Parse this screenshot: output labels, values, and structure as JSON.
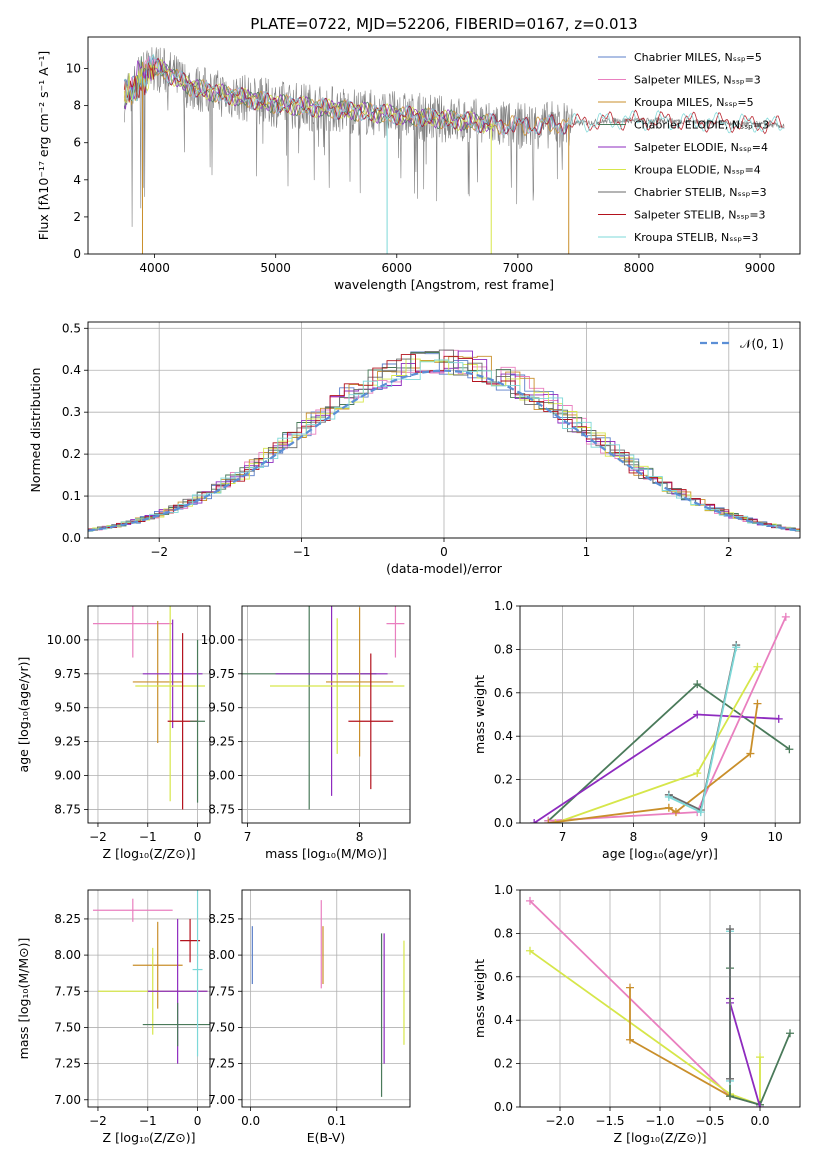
{
  "page_title": "PLATE=0722, MJD=52206, FIBERID=0167, z=0.013",
  "colors": {
    "chabrier_miles": "#5b7fc9",
    "salpeter_miles": "#e97fbf",
    "kroupa_miles": "#c98f2b",
    "chabrier_elodie": "#4a7a5a",
    "salpeter_elodie": "#8e2bbf",
    "kroupa_elodie": "#d6e64a",
    "chabrier_stelib": "#6a6a6a",
    "salpeter_stelib": "#b3121d",
    "kroupa_stelib": "#7dd8d8",
    "normal_curve": "#5b8fd6"
  },
  "chart_data": [
    {
      "id": "spectrum",
      "type": "line",
      "xlabel": "wavelength [Angstrom, rest frame]",
      "ylabel": "Flux [fλ10⁻¹⁷ erg cm⁻² s⁻¹ A⁻¹]",
      "xlim": [
        3450,
        9330
      ],
      "ylim": [
        0,
        11.7
      ],
      "xticks": [
        4000,
        5000,
        6000,
        7000,
        8000,
        9000
      ],
      "yticks": [
        0,
        2,
        4,
        6,
        8,
        10
      ],
      "legend": [
        {
          "name": "Chabrier MILES, Nₛₛₚ=5",
          "color_key": "chabrier_miles"
        },
        {
          "name": "Salpeter MILES, Nₛₛₚ=3",
          "color_key": "salpeter_miles"
        },
        {
          "name": "Kroupa MILES, Nₛₛₚ=5",
          "color_key": "kroupa_miles"
        },
        {
          "name": "Chabrier ELODIE, Nₛₛₚ=3",
          "color_key": "chabrier_elodie"
        },
        {
          "name": "Salpeter ELODIE, Nₛₛₚ=4",
          "color_key": "salpeter_elodie"
        },
        {
          "name": "Kroupa ELODIE, Nₛₛₚ=4",
          "color_key": "kroupa_elodie"
        },
        {
          "name": "Chabrier STELIB, Nₛₛₚ=3",
          "color_key": "chabrier_stelib"
        },
        {
          "name": "Salpeter STELIB, Nₛₛₚ=3",
          "color_key": "salpeter_stelib"
        },
        {
          "name": "Kroupa STELIB, Nₛₛₚ=3",
          "color_key": "kroupa_stelib"
        }
      ],
      "continuum": {
        "x": [
          3750,
          3900,
          4000,
          4100,
          4300,
          4500,
          5000,
          5500,
          6000,
          6500,
          7000,
          7400,
          7800,
          8200,
          8600,
          9000,
          9200
        ],
        "y": [
          8.4,
          9.6,
          10.1,
          9.8,
          9.0,
          8.7,
          8.1,
          7.8,
          7.5,
          7.2,
          6.9,
          7.0,
          7.2,
          7.2,
          7.1,
          7.0,
          6.9
        ]
      },
      "dips": [
        {
          "x": 3900,
          "color_key": "kroupa_miles"
        },
        {
          "x": 5920,
          "color_key": "kroupa_stelib"
        },
        {
          "x": 6780,
          "color_key": "kroupa_elodie"
        },
        {
          "x": 7420,
          "color_key": "kroupa_miles"
        }
      ]
    },
    {
      "id": "residuals",
      "type": "histogram",
      "xlabel": "(data-model)/error",
      "ylabel": "Normed distribution",
      "xlim": [
        -2.5,
        2.5
      ],
      "ylim": [
        0,
        0.515
      ],
      "xticks": [
        -2,
        -1,
        0,
        1,
        2
      ],
      "yticks": [
        0.0,
        0.1,
        0.2,
        0.3,
        0.4,
        0.5
      ],
      "grid": true,
      "legend": "𝒩(0, 1)",
      "normal_curve": {
        "mean": 0,
        "sigma": 1
      }
    },
    {
      "id": "age-vs-Z",
      "type": "scatter",
      "xlabel": "Z [log₁₀(Z/Z⊙)]",
      "ylabel": "age  [log₁₀(age/yr)]",
      "xlim": [
        -2.2,
        0.25
      ],
      "ylim": [
        8.65,
        10.25
      ],
      "xticks": [
        -2,
        -1,
        0
      ],
      "yticks": [
        8.75,
        9.0,
        9.25,
        9.5,
        9.75,
        10.0
      ],
      "points": [
        {
          "x": -1.3,
          "y": 10.12,
          "xerr": 0.8,
          "yerr": 0.25,
          "color_key": "salpeter_miles"
        },
        {
          "x": -0.8,
          "y": 9.69,
          "xerr": 0.5,
          "yerr": 0.45,
          "color_key": "kroupa_miles"
        },
        {
          "x": -0.5,
          "y": 9.75,
          "xerr": 0.6,
          "yerr": 0.4,
          "color_key": "salpeter_elodie"
        },
        {
          "x": -0.55,
          "y": 9.66,
          "xerr": 0.7,
          "yerr": 0.85,
          "color_key": "kroupa_elodie"
        },
        {
          "x": -0.3,
          "y": 9.4,
          "xerr": 0.3,
          "yerr": 0.65,
          "color_key": "salpeter_stelib"
        },
        {
          "x": 0.0,
          "y": 9.4,
          "xerr": 0.15,
          "yerr": 0.6,
          "color_key": "chabrier_elodie"
        }
      ]
    },
    {
      "id": "age-vs-mass",
      "type": "scatter",
      "xlabel": "mass [log₁₀(M/M⊙)]",
      "ylabel": "",
      "xlim": [
        6.95,
        8.45
      ],
      "ylim": [
        8.65,
        10.25
      ],
      "xticks": [
        7,
        8
      ],
      "yticks": [
        8.75,
        9.0,
        9.25,
        9.5,
        9.75,
        10.0
      ],
      "points": [
        {
          "x": 7.55,
          "y": 9.75,
          "xerr": 0.6,
          "yerr": 1.0,
          "color_key": "chabrier_elodie"
        },
        {
          "x": 7.75,
          "y": 9.75,
          "xerr": 0.5,
          "yerr": 0.9,
          "color_key": "salpeter_elodie"
        },
        {
          "x": 7.8,
          "y": 9.66,
          "xerr": 0.6,
          "yerr": 0.5,
          "color_key": "kroupa_elodie"
        },
        {
          "x": 8.0,
          "y": 9.69,
          "xerr": 0.3,
          "yerr": 0.55,
          "color_key": "kroupa_miles"
        },
        {
          "x": 8.1,
          "y": 9.4,
          "xerr": 0.2,
          "yerr": 0.5,
          "color_key": "salpeter_stelib"
        },
        {
          "x": 8.32,
          "y": 10.12,
          "xerr": 0.08,
          "yerr": 0.25,
          "color_key": "salpeter_miles"
        }
      ]
    },
    {
      "id": "mass-weight-vs-age",
      "type": "line",
      "xlabel": "age  [log₁₀(age/yr)]",
      "ylabel": "mass weight",
      "xlim": [
        6.4,
        10.35
      ],
      "ylim": [
        0,
        1.0
      ],
      "xticks": [
        7,
        8,
        9,
        10
      ],
      "yticks": [
        0.0,
        0.2,
        0.4,
        0.6,
        0.8,
        1.0
      ],
      "grid": true,
      "series": [
        {
          "color_key": "chabrier_elodie",
          "x": [
            6.8,
            8.9,
            10.2
          ],
          "y": [
            0.01,
            0.64,
            0.34
          ]
        },
        {
          "color_key": "salpeter_elodie",
          "x": [
            6.6,
            8.9,
            10.05
          ],
          "y": [
            0.0,
            0.5,
            0.48
          ]
        },
        {
          "color_key": "salpeter_miles",
          "x": [
            6.8,
            8.9,
            10.15
          ],
          "y": [
            0.01,
            0.05,
            0.95
          ]
        },
        {
          "color_key": "kroupa_elodie",
          "x": [
            6.9,
            8.9,
            9.75
          ],
          "y": [
            0.0,
            0.23,
            0.72
          ]
        },
        {
          "color_key": "kroupa_miles",
          "x": [
            6.8,
            8.5,
            8.6,
            9.65,
            9.75
          ],
          "y": [
            0.0,
            0.07,
            0.05,
            0.32,
            0.55
          ]
        },
        {
          "color_key": "chabrier_stelib",
          "x": [
            8.5,
            8.95,
            9.45
          ],
          "y": [
            0.13,
            0.06,
            0.82
          ]
        },
        {
          "color_key": "kroupa_stelib",
          "x": [
            8.5,
            8.95,
            9.45
          ],
          "y": [
            0.12,
            0.05,
            0.81
          ]
        }
      ]
    },
    {
      "id": "mass-vs-Z",
      "type": "scatter",
      "xlabel": "Z [log₁₀(Z/Z⊙)]",
      "ylabel": "mass [log₁₀(M/M⊙)]",
      "xlim": [
        -2.2,
        0.25
      ],
      "ylim": [
        6.95,
        8.45
      ],
      "xticks": [
        -2,
        -1,
        0
      ],
      "yticks": [
        7.0,
        7.25,
        7.5,
        7.75,
        8.0,
        8.25
      ],
      "points": [
        {
          "x": -1.3,
          "y": 8.31,
          "xerr": 0.8,
          "yerr": 0.08,
          "color_key": "salpeter_miles"
        },
        {
          "x": -0.8,
          "y": 7.93,
          "xerr": 0.5,
          "yerr": 0.3,
          "color_key": "kroupa_miles"
        },
        {
          "x": -0.9,
          "y": 7.75,
          "xerr": 1.1,
          "yerr": 0.3,
          "color_key": "kroupa_elodie"
        },
        {
          "x": -0.4,
          "y": 7.75,
          "xerr": 0.6,
          "yerr": 0.5,
          "color_key": "salpeter_elodie"
        },
        {
          "x": -0.4,
          "y": 7.52,
          "xerr": 0.7,
          "yerr": 0.15,
          "color_key": "chabrier_elodie"
        },
        {
          "x": -0.15,
          "y": 8.1,
          "xerr": 0.2,
          "yerr": 0.15,
          "color_key": "salpeter_stelib"
        },
        {
          "x": 0.0,
          "y": 7.9,
          "xerr": 0.1,
          "yerr": 0.6,
          "color_key": "kroupa_stelib"
        }
      ]
    },
    {
      "id": "mass-vs-ebv",
      "type": "scatter",
      "xlabel": "E(B-V)",
      "ylabel": "",
      "xlim": [
        -0.01,
        0.185
      ],
      "ylim": [
        6.95,
        8.45
      ],
      "xticks": [
        0.0,
        0.1
      ],
      "xticklabels": [
        "0.0",
        "0.1"
      ],
      "yticks": [
        7.0,
        7.25,
        7.5,
        7.75,
        8.0,
        8.25
      ],
      "vlines": [
        {
          "x": 0.002,
          "y0": 7.8,
          "y1": 8.2,
          "color_key": "chabrier_miles"
        },
        {
          "x": 0.082,
          "y0": 7.77,
          "y1": 8.38,
          "color_key": "salpeter_miles"
        },
        {
          "x": 0.084,
          "y0": 7.8,
          "y1": 8.2,
          "color_key": "kroupa_miles"
        },
        {
          "x": 0.152,
          "y0": 7.02,
          "y1": 8.15,
          "color_key": "chabrier_elodie"
        },
        {
          "x": 0.155,
          "y0": 7.25,
          "y1": 8.15,
          "color_key": "salpeter_elodie"
        },
        {
          "x": 0.178,
          "y0": 7.38,
          "y1": 8.1,
          "color_key": "kroupa_elodie"
        }
      ]
    },
    {
      "id": "mass-weight-vs-Z",
      "type": "line",
      "xlabel": "Z [log₁₀(Z/Z⊙)]",
      "ylabel": "mass weight",
      "xlim": [
        -2.4,
        0.4
      ],
      "ylim": [
        0,
        1.0
      ],
      "xticks": [
        -2.0,
        -1.5,
        -1.0,
        -0.5,
        0.0
      ],
      "xticklabels": [
        "−2.0",
        "−1.5",
        "−1.0",
        "−0.5",
        "0.0"
      ],
      "yticks": [
        0.0,
        0.2,
        0.4,
        0.6,
        0.8,
        1.0
      ],
      "grid": true,
      "series": [
        {
          "color_key": "salpeter_miles",
          "x": [
            -2.3,
            -0.3,
            0.0
          ],
          "y": [
            0.95,
            0.05,
            0.01
          ]
        },
        {
          "color_key": "kroupa_elodie",
          "x": [
            -2.3,
            -0.3,
            0.0,
            0.0
          ],
          "y": [
            0.72,
            0.06,
            0.01,
            0.23
          ]
        },
        {
          "color_key": "kroupa_miles",
          "x": [
            -1.3,
            -1.3,
            -0.3
          ],
          "y": [
            0.55,
            0.31,
            0.05
          ]
        },
        {
          "color_key": "chabrier_elodie",
          "x": [
            -0.3,
            -0.3,
            0.0,
            0.3
          ],
          "y": [
            0.64,
            0.05,
            0.01,
            0.34
          ]
        },
        {
          "color_key": "salpeter_elodie",
          "x": [
            -0.3,
            -0.3,
            0.0
          ],
          "y": [
            0.5,
            0.48,
            0.0
          ]
        },
        {
          "color_key": "kroupa_stelib",
          "x": [
            -0.3,
            -0.3
          ],
          "y": [
            0.81,
            0.12
          ]
        },
        {
          "color_key": "chabrier_stelib",
          "x": [
            -0.3,
            -0.3
          ],
          "y": [
            0.82,
            0.13
          ]
        }
      ]
    }
  ]
}
